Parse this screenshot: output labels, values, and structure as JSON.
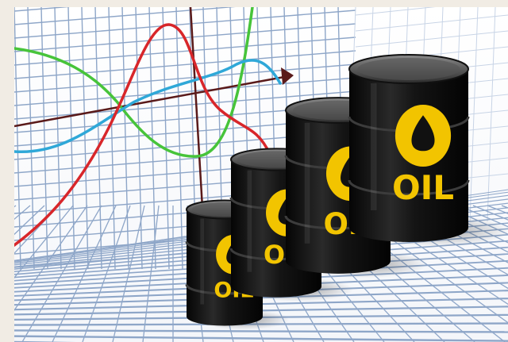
{
  "image": {
    "subject": "oil-barrels-rising-chart",
    "barrels": [
      {
        "label": "OIL"
      },
      {
        "label": "OIL"
      },
      {
        "label": "OIL"
      },
      {
        "label": "OIL"
      }
    ],
    "colors": {
      "barrel": "#141414",
      "logo": "#f2c400",
      "grid": "#8ea6c8",
      "line_red": "#d8262a",
      "line_green": "#47c43a",
      "line_blue": "#2fa8d8",
      "axis": "#5a1a1a"
    }
  }
}
